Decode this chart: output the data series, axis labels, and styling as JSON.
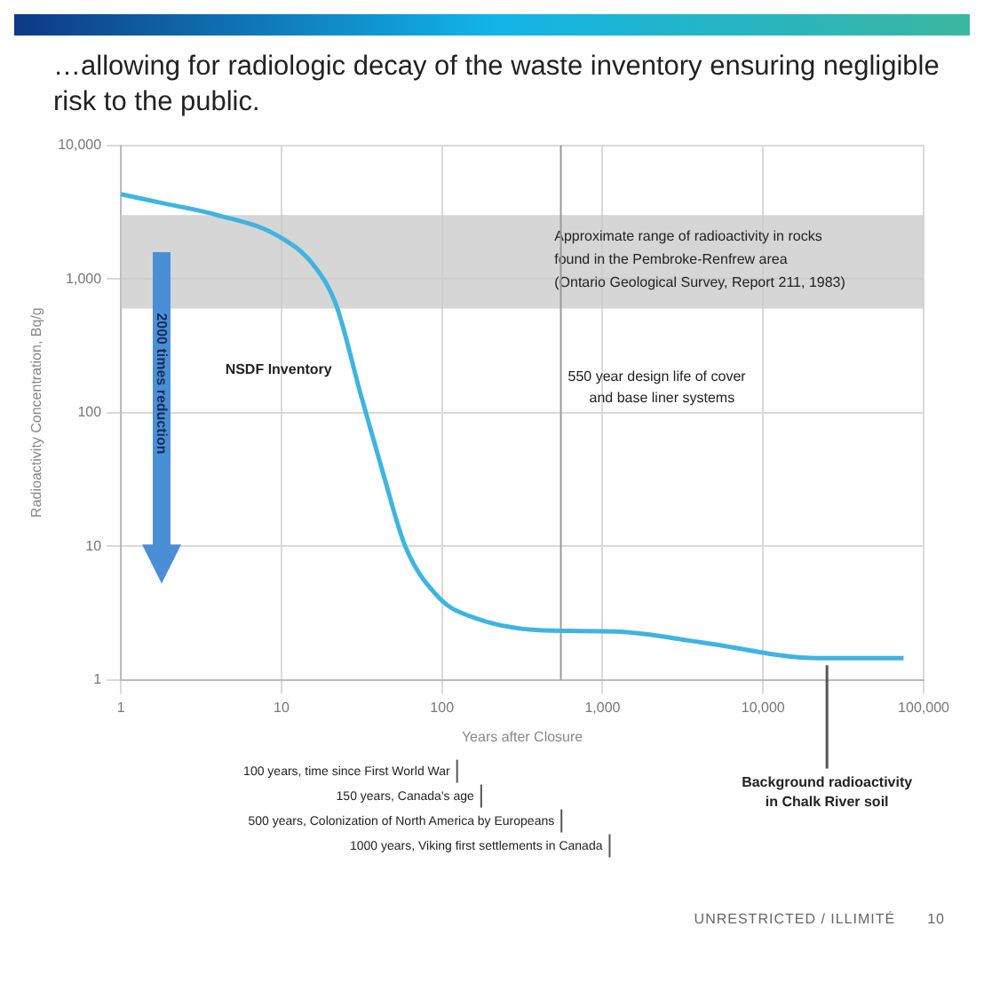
{
  "chart_data": {
    "type": "line",
    "title": "…allowing for radiologic decay of the waste inventory ensuring negligible risk to the public.",
    "xlabel": "Years after Closure",
    "ylabel": "Radioactivity Concentration, Bq/g",
    "x": [
      1,
      1.8,
      4,
      9.5,
      16,
      22,
      31,
      43,
      59,
      98,
      148,
      405,
      1200,
      4200,
      22000,
      75000
    ],
    "series": [
      {
        "name": "NSDF Inventory",
        "color": "#3fb4e0",
        "values": [
          4300,
          3700,
          3000,
          2100,
          1250,
          630,
          140,
          35,
          10,
          4,
          3,
          2.35,
          2.3,
          1.9,
          1.45,
          1.45
        ]
      }
    ],
    "log": "xy",
    "xlim": [
      1,
      100000
    ],
    "ylim": [
      1,
      10000
    ],
    "xticks": [
      1,
      10,
      100,
      {
        "value": 1000,
        "label": "1,000"
      },
      {
        "value": 10000,
        "label": "10,000"
      },
      {
        "value": 100000,
        "label": "100,000"
      }
    ],
    "yticks": [
      1,
      10,
      100,
      {
        "value": 1000,
        "label": "1,000"
      },
      {
        "value": 10000,
        "label": "10,000"
      }
    ],
    "grid": true,
    "legend": false,
    "marker": "none",
    "bands": [
      {
        "axis": "y",
        "from": 600,
        "to": 3000,
        "label": "Approximate range of radioactivity in rocks\nfound in the Pembroke-Renfrew area\n(Ontario Geological Survey, Report 211, 1983)",
        "color": "#c8c8c8"
      }
    ],
    "ref_lines": [
      {
        "axis": "x",
        "value": 550,
        "label": "550 year design life of cover\nand base liner systems",
        "color": "#9a9a9a"
      }
    ],
    "annotations": [
      "2000 times reduction",
      "100 years, time since First World War",
      "150 years, Canada's age",
      "500 years, Colonization of North America by Europeans",
      "1000 years, Viking first settlements in Canada",
      {
        "text": "Background radioactivity\nin Chalk River soil",
        "x": 25000,
        "y": 1.45
      },
      "UNRESTRICTED / ILLIMITÉ",
      "10"
    ]
  }
}
